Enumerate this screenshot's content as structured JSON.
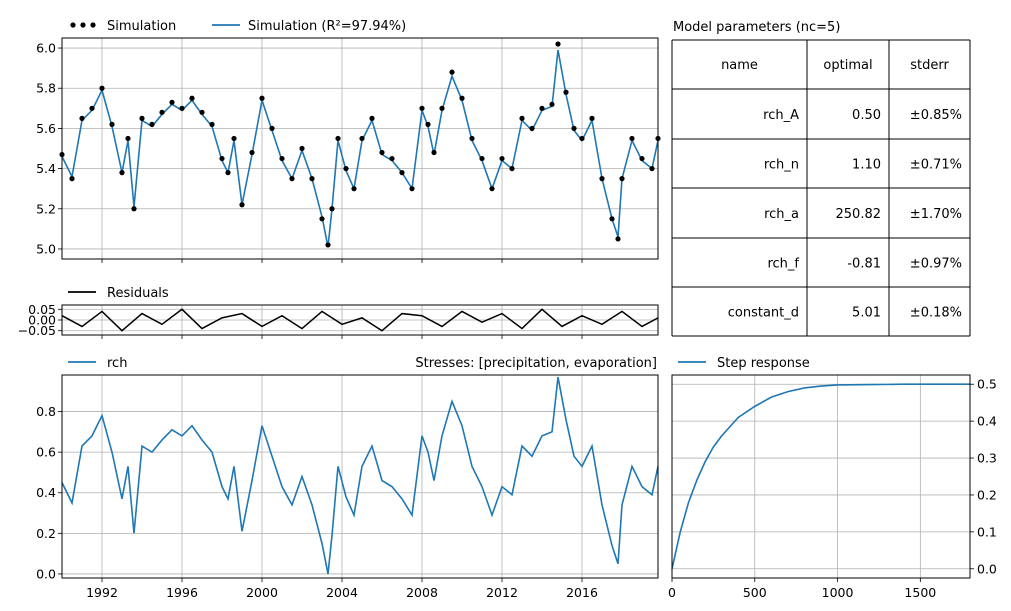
{
  "chart_data": [
    {
      "panel": "simulation",
      "type": "line",
      "legend": [
        "Simulation",
        "Simulation (R²=97.94%)"
      ],
      "legend_placement": "top-left",
      "ylim": [
        4.95,
        6.05
      ],
      "yticks": [
        "5.0",
        "5.2",
        "5.4",
        "5.6",
        "5.8",
        "6.0"
      ],
      "xlim": [
        1990.0,
        2019.8
      ],
      "grid": true,
      "series": [
        {
          "name": "Simulation",
          "style": "points",
          "color": "#000000",
          "x": [
            1990.0,
            1990.5,
            1991.0,
            1991.5,
            1992.0,
            1992.5,
            1993.0,
            1993.3,
            1993.6,
            1994.0,
            1994.5,
            1995.0,
            1995.5,
            1996.0,
            1996.5,
            1997.0,
            1997.5,
            1998.0,
            1998.3,
            1998.6,
            1999.0,
            1999.5,
            2000.0,
            2000.5,
            2001.0,
            2001.5,
            2002.0,
            2002.5,
            2003.0,
            2003.3,
            2003.5,
            2003.8,
            2004.2,
            2004.6,
            2005.0,
            2005.5,
            2006.0,
            2006.5,
            2007.0,
            2007.5,
            2008.0,
            2008.3,
            2008.6,
            2009.0,
            2009.5,
            2010.0,
            2010.5,
            2011.0,
            2011.5,
            2012.0,
            2012.5,
            2013.0,
            2013.5,
            2014.0,
            2014.5,
            2014.8,
            2015.2,
            2015.6,
            2016.0,
            2016.5,
            2017.0,
            2017.5,
            2017.8,
            2018.0,
            2018.5,
            2019.0,
            2019.5,
            2019.8
          ],
          "y": [
            5.47,
            5.35,
            5.65,
            5.7,
            5.8,
            5.62,
            5.38,
            5.55,
            5.2,
            5.65,
            5.62,
            5.68,
            5.73,
            5.7,
            5.75,
            5.68,
            5.62,
            5.45,
            5.38,
            5.55,
            5.22,
            5.48,
            5.75,
            5.6,
            5.45,
            5.35,
            5.5,
            5.35,
            5.15,
            5.02,
            5.2,
            5.55,
            5.4,
            5.3,
            5.55,
            5.65,
            5.48,
            5.45,
            5.38,
            5.3,
            5.7,
            5.62,
            5.48,
            5.7,
            5.88,
            5.75,
            5.55,
            5.45,
            5.3,
            5.45,
            5.4,
            5.65,
            5.6,
            5.7,
            5.72,
            6.02,
            5.78,
            5.6,
            5.55,
            5.65,
            5.35,
            5.15,
            5.05,
            5.35,
            5.55,
            5.45,
            5.4,
            5.55
          ]
        },
        {
          "name": "Simulation (R²=97.94%)",
          "style": "line",
          "color": "#1f77b4",
          "x": [
            1990.0,
            1990.5,
            1991.0,
            1991.5,
            1992.0,
            1992.5,
            1993.0,
            1993.3,
            1993.6,
            1994.0,
            1994.5,
            1995.0,
            1995.5,
            1996.0,
            1996.5,
            1997.0,
            1997.5,
            1998.0,
            1998.3,
            1998.6,
            1999.0,
            1999.5,
            2000.0,
            2000.5,
            2001.0,
            2001.5,
            2002.0,
            2002.5,
            2003.0,
            2003.3,
            2003.5,
            2003.8,
            2004.2,
            2004.6,
            2005.0,
            2005.5,
            2006.0,
            2006.5,
            2007.0,
            2007.5,
            2008.0,
            2008.3,
            2008.6,
            2009.0,
            2009.5,
            2010.0,
            2010.5,
            2011.0,
            2011.5,
            2012.0,
            2012.5,
            2013.0,
            2013.5,
            2014.0,
            2014.5,
            2014.8,
            2015.2,
            2015.6,
            2016.0,
            2016.5,
            2017.0,
            2017.5,
            2017.8,
            2018.0,
            2018.5,
            2019.0,
            2019.5,
            2019.8
          ],
          "y": [
            5.46,
            5.36,
            5.64,
            5.69,
            5.79,
            5.61,
            5.38,
            5.54,
            5.21,
            5.64,
            5.61,
            5.67,
            5.72,
            5.69,
            5.74,
            5.67,
            5.61,
            5.44,
            5.38,
            5.54,
            5.22,
            5.47,
            5.74,
            5.59,
            5.44,
            5.35,
            5.49,
            5.35,
            5.16,
            5.01,
            5.2,
            5.54,
            5.39,
            5.3,
            5.54,
            5.64,
            5.47,
            5.44,
            5.38,
            5.3,
            5.69,
            5.61,
            5.47,
            5.69,
            5.86,
            5.74,
            5.54,
            5.44,
            5.3,
            5.44,
            5.4,
            5.64,
            5.59,
            5.69,
            5.71,
            5.99,
            5.77,
            5.59,
            5.54,
            5.64,
            5.35,
            5.15,
            5.06,
            5.35,
            5.54,
            5.44,
            5.4,
            5.54
          ]
        }
      ]
    },
    {
      "panel": "residuals",
      "type": "line",
      "legend": [
        "Residuals"
      ],
      "ylim": [
        -0.07,
        0.07
      ],
      "yticks": [
        "0.05",
        "0.00",
        "−0.05"
      ],
      "grid": true,
      "series": [
        {
          "name": "Residuals",
          "color": "#000000",
          "x": [
            1990.0,
            1991.0,
            1992.0,
            1993.0,
            1994.0,
            1995.0,
            1996.0,
            1997.0,
            1998.0,
            1999.0,
            2000.0,
            2001.0,
            2002.0,
            2003.0,
            2004.0,
            2005.0,
            2006.0,
            2007.0,
            2008.0,
            2009.0,
            2010.0,
            2011.0,
            2012.0,
            2013.0,
            2014.0,
            2015.0,
            2016.0,
            2017.0,
            2018.0,
            2019.0,
            2019.8
          ],
          "y": [
            0.02,
            -0.03,
            0.04,
            -0.05,
            0.03,
            -0.02,
            0.05,
            -0.04,
            0.01,
            0.03,
            -0.03,
            0.02,
            -0.04,
            0.04,
            -0.02,
            0.01,
            -0.05,
            0.03,
            0.02,
            -0.03,
            0.04,
            -0.01,
            0.03,
            -0.04,
            0.05,
            -0.03,
            0.02,
            -0.02,
            0.04,
            -0.03,
            0.01
          ]
        }
      ]
    },
    {
      "panel": "stresses",
      "type": "line",
      "title": "Stresses: [precipitation, evaporation]",
      "legend": [
        "rch"
      ],
      "ylim": [
        -0.02,
        0.98
      ],
      "yticks": [
        "0.0",
        "0.2",
        "0.4",
        "0.6",
        "0.8"
      ],
      "xticks": [
        "1992",
        "1996",
        "2000",
        "2004",
        "2008",
        "2012",
        "2016"
      ],
      "xlim": [
        1990.0,
        2019.8
      ],
      "grid": true,
      "series": [
        {
          "name": "rch",
          "color": "#1f77b4",
          "x": [
            1990.0,
            1990.5,
            1991.0,
            1991.5,
            1992.0,
            1992.5,
            1993.0,
            1993.3,
            1993.6,
            1994.0,
            1994.5,
            1995.0,
            1995.5,
            1996.0,
            1996.5,
            1997.0,
            1997.5,
            1998.0,
            1998.3,
            1998.6,
            1999.0,
            1999.5,
            2000.0,
            2000.5,
            2001.0,
            2001.5,
            2002.0,
            2002.5,
            2003.0,
            2003.3,
            2003.5,
            2003.8,
            2004.2,
            2004.6,
            2005.0,
            2005.5,
            2006.0,
            2006.5,
            2007.0,
            2007.5,
            2008.0,
            2008.3,
            2008.6,
            2009.0,
            2009.5,
            2010.0,
            2010.5,
            2011.0,
            2011.5,
            2012.0,
            2012.5,
            2013.0,
            2013.5,
            2014.0,
            2014.5,
            2014.8,
            2015.2,
            2015.6,
            2016.0,
            2016.5,
            2017.0,
            2017.5,
            2017.8,
            2018.0,
            2018.5,
            2019.0,
            2019.5,
            2019.8
          ],
          "y": [
            0.45,
            0.35,
            0.63,
            0.68,
            0.78,
            0.6,
            0.37,
            0.53,
            0.2,
            0.63,
            0.6,
            0.66,
            0.71,
            0.68,
            0.73,
            0.66,
            0.6,
            0.43,
            0.37,
            0.53,
            0.21,
            0.46,
            0.73,
            0.58,
            0.43,
            0.34,
            0.48,
            0.34,
            0.15,
            0.0,
            0.19,
            0.53,
            0.38,
            0.29,
            0.53,
            0.63,
            0.46,
            0.43,
            0.37,
            0.29,
            0.68,
            0.6,
            0.46,
            0.68,
            0.85,
            0.73,
            0.53,
            0.43,
            0.29,
            0.43,
            0.39,
            0.63,
            0.58,
            0.68,
            0.7,
            0.97,
            0.76,
            0.58,
            0.53,
            0.63,
            0.34,
            0.14,
            0.05,
            0.34,
            0.53,
            0.43,
            0.39,
            0.53
          ]
        }
      ]
    },
    {
      "panel": "step_response",
      "type": "line",
      "legend": [
        "Step response"
      ],
      "xlim": [
        0,
        1800
      ],
      "ylim": [
        -0.025,
        0.525
      ],
      "xticks": [
        "0",
        "500",
        "1000",
        "1500"
      ],
      "yticks": [
        "0.0",
        "0.1",
        "0.2",
        "0.3",
        "0.4",
        "0.5"
      ],
      "grid": true,
      "series": [
        {
          "name": "Step response",
          "color": "#1f77b4",
          "x": [
            0,
            50,
            100,
            150,
            200,
            250,
            300,
            400,
            500,
            600,
            700,
            800,
            900,
            1000,
            1200,
            1400,
            1600,
            1800
          ],
          "y": [
            0.0,
            0.1,
            0.18,
            0.24,
            0.29,
            0.33,
            0.36,
            0.41,
            0.44,
            0.465,
            0.48,
            0.49,
            0.495,
            0.498,
            0.499,
            0.5,
            0.5,
            0.5
          ]
        }
      ]
    },
    {
      "panel": "parameters",
      "type": "table",
      "title": "Model parameters (nc=5)",
      "columns": [
        "name",
        "optimal",
        "stderr"
      ],
      "rows": [
        [
          "rch_A",
          "0.50",
          "±0.85%"
        ],
        [
          "rch_n",
          "1.10",
          "±0.71%"
        ],
        [
          "rch_a",
          "250.82",
          "±1.70%"
        ],
        [
          "rch_f",
          "-0.81",
          "±0.97%"
        ],
        [
          "constant_d",
          "5.01",
          "±0.18%"
        ]
      ]
    }
  ],
  "colors": {
    "simulation": "#1f77b4",
    "observed": "#000000",
    "grid": "#b0b0b0"
  }
}
